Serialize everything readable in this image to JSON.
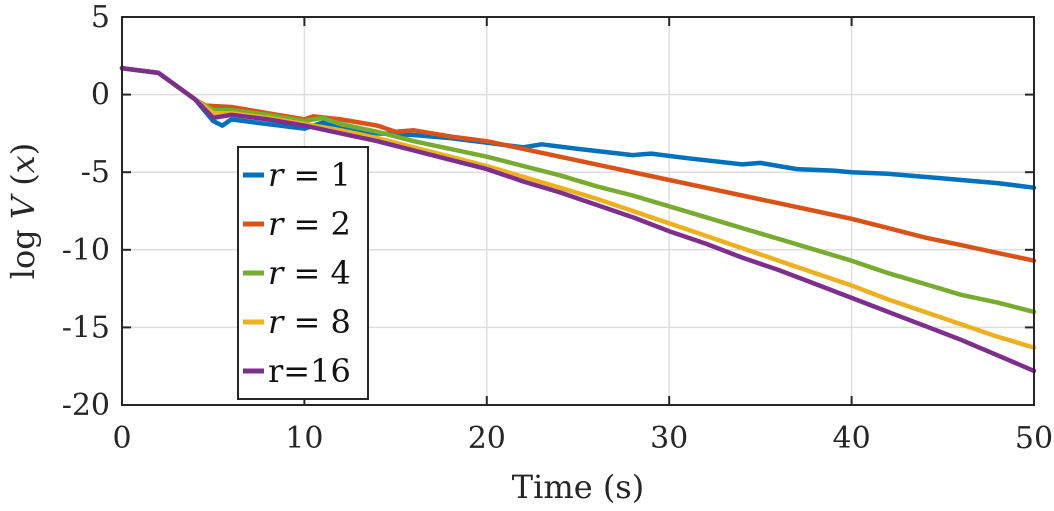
{
  "chart_data": {
    "type": "line",
    "title": "",
    "xlabel": "Time (s)",
    "ylabel": "log V (x)",
    "xlim": [
      0,
      50
    ],
    "ylim": [
      -20,
      5
    ],
    "x_ticks": [
      0,
      10,
      20,
      30,
      40,
      50
    ],
    "x_tick_labels": [
      "0",
      "10",
      "20",
      "30",
      "40",
      "50"
    ],
    "y_ticks": [
      5,
      0,
      -5,
      -10,
      -15,
      -20
    ],
    "y_tick_labels": [
      "5",
      "0",
      "-5",
      "-10",
      "-15",
      "-20"
    ],
    "grid": true,
    "legend_position": "lower-left",
    "series": [
      {
        "name": "r = 1",
        "legend": {
          "var": "r",
          "op": " = ",
          "val": "1"
        },
        "color": "#0072BD",
        "x": [
          0,
          2,
          4,
          5,
          5.5,
          6,
          8,
          10,
          11,
          12,
          14,
          16,
          18,
          20,
          22,
          23,
          25,
          28,
          29,
          31,
          34,
          35,
          37,
          39,
          40,
          42,
          44,
          45,
          46,
          48,
          50
        ],
        "y": [
          1.7,
          1.4,
          -0.3,
          -1.7,
          -2.0,
          -1.6,
          -1.9,
          -2.2,
          -1.8,
          -2.2,
          -2.5,
          -2.6,
          -2.8,
          -3.1,
          -3.4,
          -3.2,
          -3.5,
          -3.9,
          -3.8,
          -4.1,
          -4.5,
          -4.4,
          -4.8,
          -4.9,
          -5.0,
          -5.1,
          -5.3,
          -5.4,
          -5.5,
          -5.7,
          -6.0
        ]
      },
      {
        "name": "r = 2",
        "legend": {
          "var": "r",
          "op": " = ",
          "val": "2"
        },
        "color": "#D95319",
        "x": [
          0,
          2,
          4,
          4.5,
          6,
          8,
          10,
          10.5,
          12,
          14,
          15,
          16,
          18,
          20,
          22,
          24,
          26,
          28,
          30,
          32,
          34,
          36,
          38,
          40,
          42,
          44,
          46,
          48,
          50
        ],
        "y": [
          1.7,
          1.4,
          -0.3,
          -0.7,
          -0.8,
          -1.2,
          -1.6,
          -1.4,
          -1.6,
          -2.0,
          -2.4,
          -2.3,
          -2.7,
          -3.0,
          -3.5,
          -4.0,
          -4.5,
          -5.0,
          -5.5,
          -6.0,
          -6.5,
          -7.0,
          -7.5,
          -8.0,
          -8.6,
          -9.2,
          -9.7,
          -10.2,
          -10.7
        ]
      },
      {
        "name": "r = 4",
        "legend": {
          "var": "r",
          "op": " = ",
          "val": "4"
        },
        "color": "#77AC30",
        "x": [
          0,
          2,
          4,
          5,
          6,
          8,
          10,
          11,
          12,
          14,
          16,
          18,
          20,
          22,
          24,
          26,
          28,
          30,
          32,
          34,
          36,
          38,
          40,
          42,
          44,
          46,
          48,
          50
        ],
        "y": [
          1.7,
          1.4,
          -0.3,
          -1.0,
          -1.0,
          -1.3,
          -1.7,
          -1.5,
          -1.9,
          -2.4,
          -3.0,
          -3.5,
          -4.0,
          -4.6,
          -5.2,
          -5.9,
          -6.5,
          -7.2,
          -7.9,
          -8.6,
          -9.3,
          -10.0,
          -10.7,
          -11.5,
          -12.2,
          -12.9,
          -13.4,
          -14.0
        ]
      },
      {
        "name": "r = 8",
        "legend": {
          "var": "r",
          "op": " = ",
          "val": "8"
        },
        "color": "#EDB120",
        "x": [
          0,
          2,
          4,
          5,
          6,
          8,
          10,
          12,
          14,
          16,
          18,
          20,
          22,
          24,
          26,
          28,
          30,
          32,
          34,
          36,
          38,
          40,
          42,
          44,
          46,
          48,
          50
        ],
        "y": [
          1.7,
          1.4,
          -0.3,
          -1.2,
          -1.2,
          -1.5,
          -1.9,
          -2.3,
          -2.8,
          -3.4,
          -4.0,
          -4.6,
          -5.3,
          -6.0,
          -6.7,
          -7.5,
          -8.3,
          -9.1,
          -9.9,
          -10.7,
          -11.5,
          -12.3,
          -13.2,
          -14.0,
          -14.8,
          -15.6,
          -16.3
        ]
      },
      {
        "name": "r=16",
        "legend": {
          "var": "",
          "op": "r=16",
          "val": ""
        },
        "color": "#7E2F8E",
        "x": [
          0,
          2,
          4,
          5,
          6,
          8,
          10,
          12,
          14,
          16,
          18,
          20,
          22,
          24,
          26,
          28,
          30,
          32,
          34,
          36,
          38,
          40,
          42,
          44,
          46,
          48,
          50
        ],
        "y": [
          1.7,
          1.4,
          -0.3,
          -1.5,
          -1.3,
          -1.6,
          -2.0,
          -2.5,
          -3.0,
          -3.6,
          -4.2,
          -4.8,
          -5.6,
          -6.3,
          -7.1,
          -7.9,
          -8.8,
          -9.6,
          -10.5,
          -11.3,
          -12.2,
          -13.1,
          -14.0,
          -14.9,
          -15.8,
          -16.8,
          -17.8
        ]
      }
    ]
  }
}
